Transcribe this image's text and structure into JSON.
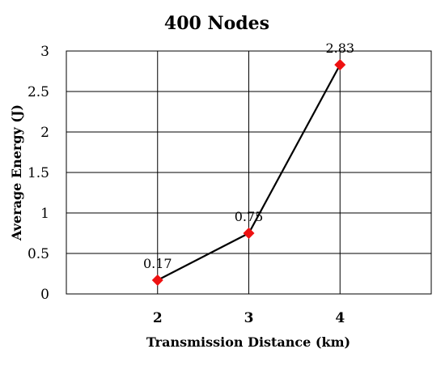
{
  "chart_data": {
    "type": "line",
    "title": "400 Nodes",
    "xlabel": "Transmission Distance (km)",
    "ylabel": "Average Energy (J)",
    "categories": [
      "2",
      "3",
      "4"
    ],
    "series": [
      {
        "values": [
          0.17,
          0.75,
          2.83
        ],
        "data_labels": [
          "0.17",
          "0.75",
          "2.83"
        ]
      }
    ],
    "ylim": [
      0,
      3
    ],
    "yticks": [
      "0",
      "0.5",
      "1",
      "1.5",
      "2",
      "2.5",
      "3"
    ],
    "grid": true,
    "marker": "diamond",
    "colors": {
      "line": "#000000",
      "marker": "#ee1111"
    }
  }
}
